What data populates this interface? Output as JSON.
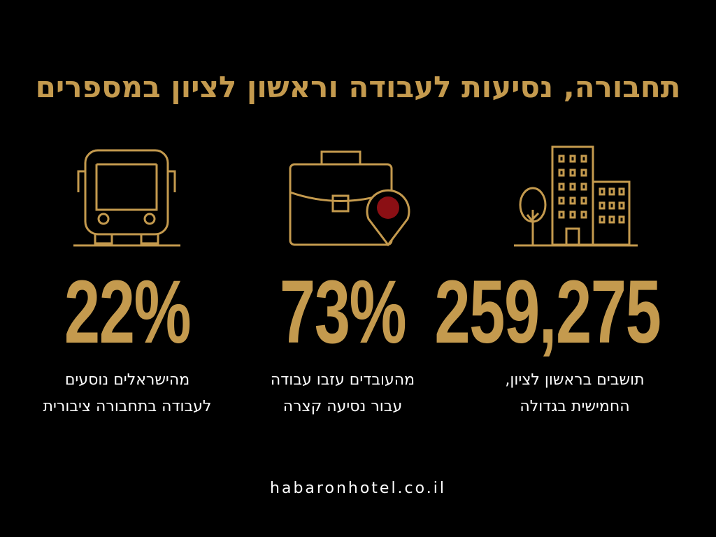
{
  "header": {
    "title": "תחבורה, נסיעות לעבודה וראשון לציון במספרים"
  },
  "stats": [
    {
      "figure": "259,275",
      "lines": [
        "תושבים בראשון לציון,",
        "החמישית בגדולה"
      ]
    },
    {
      "figure": "73%",
      "lines": [
        "מהעובדים עזבו עבודה",
        "עבור נסיעה קצרה"
      ]
    },
    {
      "figure": "22%",
      "lines": [
        "מהישראלים נוסעים",
        "לעבודה בתחבורה ציבורית"
      ]
    }
  ],
  "footer": {
    "url": "habaronhotel.co.il"
  }
}
